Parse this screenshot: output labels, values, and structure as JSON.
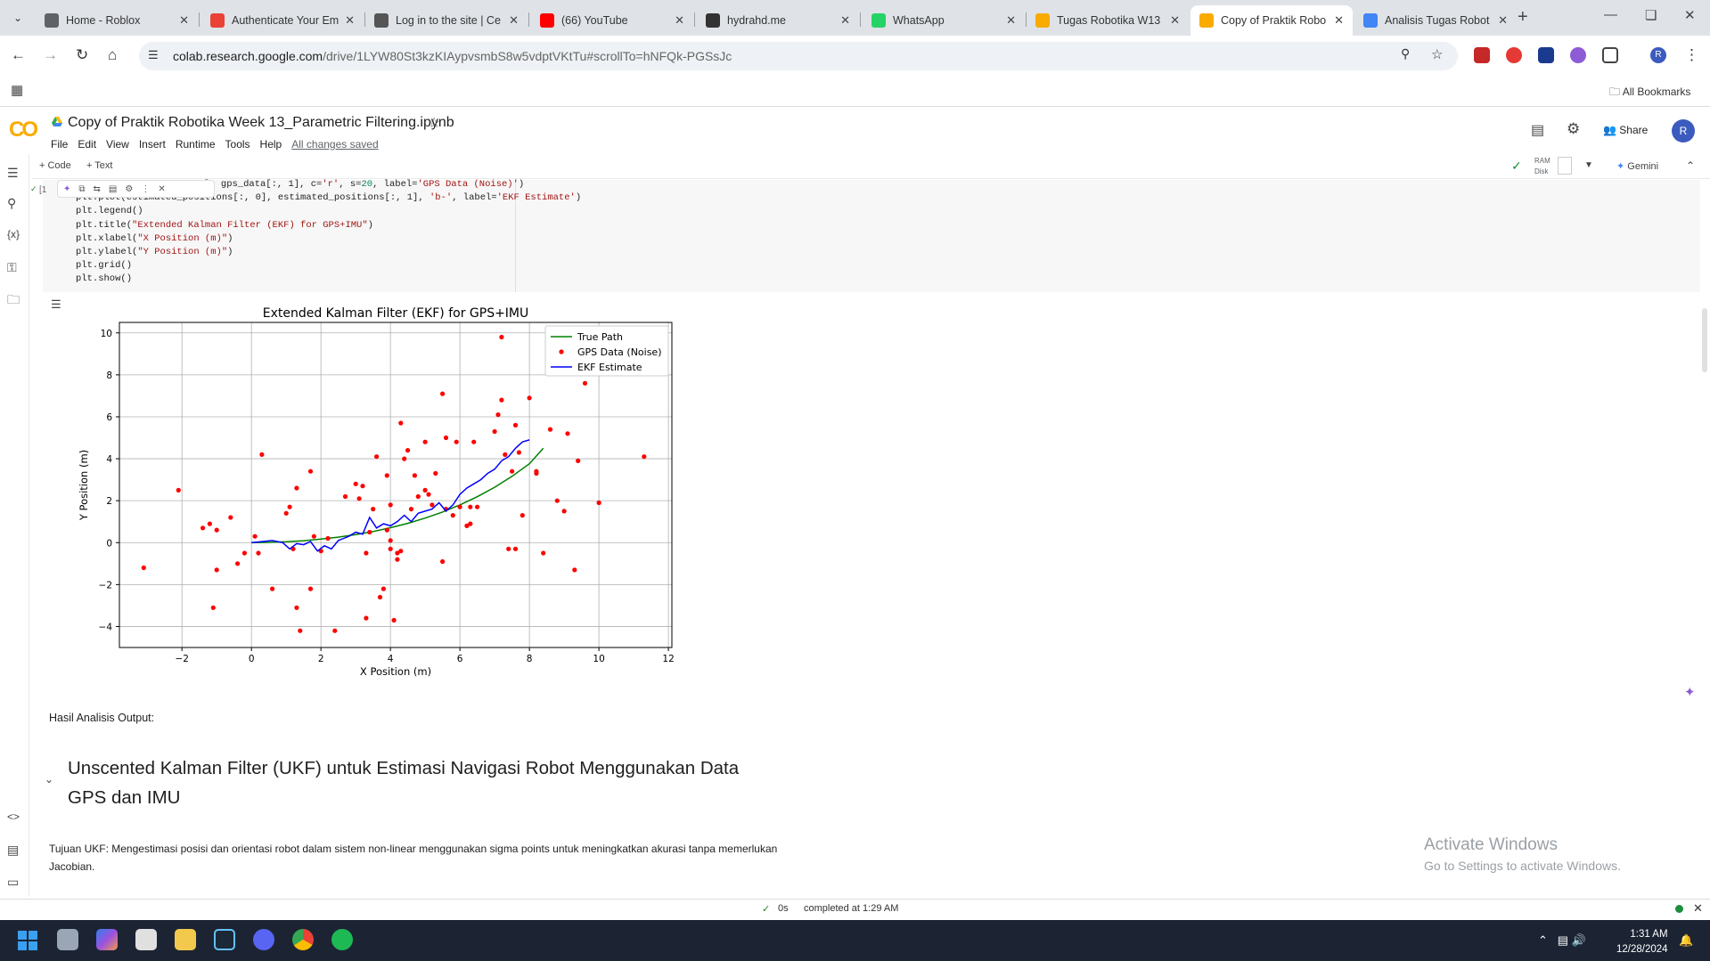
{
  "browser": {
    "tabs": [
      {
        "title": "Home - Roblox",
        "favicon": "roblox-icon",
        "color": "#5f6368"
      },
      {
        "title": "Authenticate Your Em",
        "favicon": "gmail-icon",
        "color": "#ea4335"
      },
      {
        "title": "Log in to the site | Ce",
        "favicon": "edge-icon",
        "color": "#555555"
      },
      {
        "title": "(66) YouTube",
        "favicon": "youtube-icon",
        "color": "#ff0000"
      },
      {
        "title": "hydrahd.me",
        "favicon": "hydra-icon",
        "color": "#333333"
      },
      {
        "title": "WhatsApp",
        "favicon": "whatsapp-icon",
        "color": "#25d366"
      },
      {
        "title": "Tugas Robotika W13",
        "favicon": "slides-icon",
        "color": "#f9ab00"
      },
      {
        "title": "Copy of Praktik Robo",
        "favicon": "colab-icon",
        "color": "#f9ab00"
      },
      {
        "title": "Analisis Tugas Robot",
        "favicon": "docs-icon",
        "color": "#4285f4"
      }
    ],
    "url_main": "colab.research.google.com",
    "url_rest": "/drive/1LYW80St3kzKIAypvsmbS8w5vdptVKtTu#scrollTo=hNFQk-PGSsJc",
    "bookmarks_label": "All Bookmarks",
    "profile_initial": "R"
  },
  "colab": {
    "logo": "CO",
    "title": "Copy of Praktik Robotika Week 13_Parametric Filtering.ipynb",
    "menus": [
      "File",
      "Edit",
      "View",
      "Insert",
      "Runtime",
      "Tools",
      "Help"
    ],
    "saved_status": "All changes saved",
    "share_label": "Share",
    "avatar": "R",
    "add_code": "+ Code",
    "add_text": "+ Text",
    "ram_label": "RAM",
    "disk_label": "Disk",
    "gemini_label": "Gemini"
  },
  "cell": {
    "exec_label": "[1",
    "code_lines": [
      {
        "parts": [
          {
            "t": "], gps_data[:, 1], c=",
            "c": ""
          },
          {
            "t": "'r'",
            "c": "cs"
          },
          {
            "t": ", s=",
            "c": ""
          },
          {
            "t": "20",
            "c": "cn"
          },
          {
            "t": ", label=",
            "c": ""
          },
          {
            "t": "'GPS Data (Noise)'",
            "c": "cs"
          },
          {
            "t": ")",
            "c": ""
          }
        ],
        "indent": 144
      },
      {
        "parts": [
          {
            "t": "plt.plot(estimated_positions[:, 0], estimated_positions[:, 1], ",
            "c": ""
          },
          {
            "t": "'b-'",
            "c": "cs"
          },
          {
            "t": ", label=",
            "c": ""
          },
          {
            "t": "'EKF Estimate'",
            "c": "cs"
          },
          {
            "t": ")",
            "c": ""
          }
        ],
        "indent": 0
      },
      {
        "parts": [
          {
            "t": "plt.legend()",
            "c": ""
          }
        ],
        "indent": 0
      },
      {
        "parts": [
          {
            "t": "plt.title(",
            "c": ""
          },
          {
            "t": "\"Extended Kalman Filter (EKF) for GPS+IMU\"",
            "c": "cs"
          },
          {
            "t": ")",
            "c": ""
          }
        ],
        "indent": 0
      },
      {
        "parts": [
          {
            "t": "plt.xlabel(",
            "c": ""
          },
          {
            "t": "\"X Position (m)\"",
            "c": "cs"
          },
          {
            "t": ")",
            "c": ""
          }
        ],
        "indent": 0
      },
      {
        "parts": [
          {
            "t": "plt.ylabel(",
            "c": ""
          },
          {
            "t": "\"Y Position (m)\"",
            "c": "cs"
          },
          {
            "t": ")",
            "c": ""
          }
        ],
        "indent": 0
      },
      {
        "parts": [
          {
            "t": "plt.grid()",
            "c": ""
          }
        ],
        "indent": 0
      },
      {
        "parts": [
          {
            "t": "plt.show()",
            "c": ""
          }
        ],
        "indent": 0
      }
    ]
  },
  "chart_data": {
    "type": "scatter",
    "title": "Extended Kalman Filter (EKF) for GPS+IMU",
    "xlabel": "X Position (m)",
    "ylabel": "Y Position (m)",
    "xlim": [
      -3.8,
      12.1
    ],
    "ylim": [
      -5.0,
      10.5
    ],
    "xticks": [
      -2,
      0,
      2,
      4,
      6,
      8,
      10,
      12
    ],
    "yticks": [
      -4,
      -2,
      0,
      2,
      4,
      6,
      8,
      10
    ],
    "grid": true,
    "legend_position": "top-right",
    "series": [
      {
        "name": "True Path",
        "kind": "line",
        "color": "#008000",
        "x": [
          0,
          0.5,
          1,
          1.5,
          2,
          2.5,
          3,
          3.5,
          4,
          4.5,
          5,
          5.5,
          6,
          6.5,
          7,
          7.5,
          8,
          8.4
        ],
        "y": [
          0,
          0.01,
          0.04,
          0.09,
          0.17,
          0.26,
          0.38,
          0.53,
          0.71,
          0.92,
          1.17,
          1.46,
          1.8,
          2.19,
          2.64,
          3.16,
          3.76,
          4.5
        ]
      },
      {
        "name": "GPS Data (Noise)",
        "kind": "scatter",
        "color": "#ff0000",
        "x": [
          -3.1,
          -2.1,
          -1.4,
          -1.2,
          -1.0,
          -1.1,
          -1.0,
          -0.6,
          -0.4,
          -0.2,
          0.1,
          0.2,
          0.3,
          0.6,
          1.0,
          1.1,
          1.2,
          1.3,
          1.3,
          1.4,
          1.7,
          1.7,
          1.8,
          2.0,
          2.2,
          2.4,
          2.7,
          3.0,
          3.1,
          3.2,
          3.3,
          3.3,
          3.4,
          3.5,
          3.6,
          3.7,
          3.8,
          3.9,
          3.9,
          4.0,
          4.0,
          4.0,
          4.1,
          4.2,
          4.2,
          4.3,
          4.3,
          4.4,
          4.5,
          4.6,
          4.7,
          4.8,
          5.0,
          5.0,
          5.1,
          5.2,
          5.3,
          5.5,
          5.5,
          5.6,
          5.6,
          5.8,
          5.9,
          6.0,
          6.2,
          6.3,
          6.3,
          6.4,
          6.5,
          7.0,
          7.1,
          7.2,
          7.2,
          7.3,
          7.4,
          7.5,
          7.6,
          7.6,
          7.7,
          7.8,
          8.0,
          8.2,
          8.2,
          8.4,
          8.6,
          8.8,
          9.0,
          9.1,
          9.3,
          9.4,
          9.6,
          10.0,
          11.3
        ],
        "y": [
          -1.2,
          2.5,
          0.7,
          0.9,
          -1.3,
          -3.1,
          0.6,
          1.2,
          -1.0,
          -0.5,
          0.3,
          -0.5,
          4.2,
          -2.2,
          1.4,
          1.7,
          -0.3,
          2.6,
          -3.1,
          -4.2,
          3.4,
          -2.2,
          0.3,
          -0.4,
          0.2,
          -4.2,
          2.2,
          2.8,
          2.1,
          2.7,
          -3.6,
          -0.5,
          0.5,
          1.6,
          4.1,
          -2.6,
          -2.2,
          0.6,
          3.2,
          1.8,
          0.1,
          -0.3,
          -3.7,
          -0.5,
          -0.8,
          -0.4,
          5.7,
          4.0,
          4.4,
          1.6,
          3.2,
          2.2,
          4.8,
          2.5,
          2.3,
          1.8,
          3.3,
          7.1,
          -0.9,
          5.0,
          1.6,
          1.3,
          4.8,
          1.7,
          0.8,
          1.7,
          0.9,
          4.8,
          1.7,
          5.3,
          6.1,
          6.8,
          9.8,
          4.2,
          -0.3,
          3.4,
          5.6,
          -0.3,
          4.3,
          1.3,
          6.9,
          3.3,
          3.4,
          -0.5,
          5.4,
          2.0,
          1.5,
          5.2,
          -1.3,
          3.9,
          7.6,
          1.9,
          4.1
        ]
      },
      {
        "name": "EKF Estimate",
        "kind": "line",
        "color": "#0000ff",
        "x": [
          0,
          0.3,
          0.6,
          0.9,
          1.1,
          1.3,
          1.5,
          1.7,
          1.9,
          2.1,
          2.3,
          2.5,
          2.8,
          3.0,
          3.2,
          3.4,
          3.6,
          3.8,
          4.0,
          4.2,
          4.4,
          4.6,
          4.8,
          5.0,
          5.2,
          5.4,
          5.6,
          5.8,
          6.0,
          6.2,
          6.4,
          6.6,
          6.8,
          7.0,
          7.2,
          7.4,
          7.6,
          7.8,
          8.0
        ],
        "y": [
          0,
          0.05,
          0.1,
          0.0,
          -0.3,
          -0.05,
          -0.1,
          0.05,
          -0.4,
          -0.15,
          -0.3,
          0.1,
          0.3,
          0.5,
          0.4,
          1.2,
          0.7,
          0.9,
          0.8,
          1.0,
          1.3,
          1.0,
          1.4,
          1.5,
          1.6,
          1.9,
          1.5,
          1.8,
          2.3,
          2.6,
          2.8,
          3.0,
          3.3,
          3.5,
          3.9,
          4.1,
          4.5,
          4.8,
          4.9
        ]
      }
    ]
  },
  "markdown": {
    "hasil": "Hasil Analisis Output:",
    "ukf_heading": "Unscented Kalman Filter (UKF) untuk Estimasi Navigasi Robot Menggunakan Data GPS dan IMU",
    "ukf_paragraph": "Tujuan UKF: Mengestimasi posisi dan orientasi robot dalam sistem non-linear menggunakan sigma points untuk meningkatkan akurasi tanpa memerlukan Jacobian."
  },
  "watermark": {
    "line1": "Activate Windows",
    "line2": "Go to Settings to activate Windows."
  },
  "status": {
    "time": "0s",
    "completed": "completed at 1:29 AM"
  },
  "taskbar": {
    "time": "1:31 AM",
    "date": "12/28/2024"
  }
}
